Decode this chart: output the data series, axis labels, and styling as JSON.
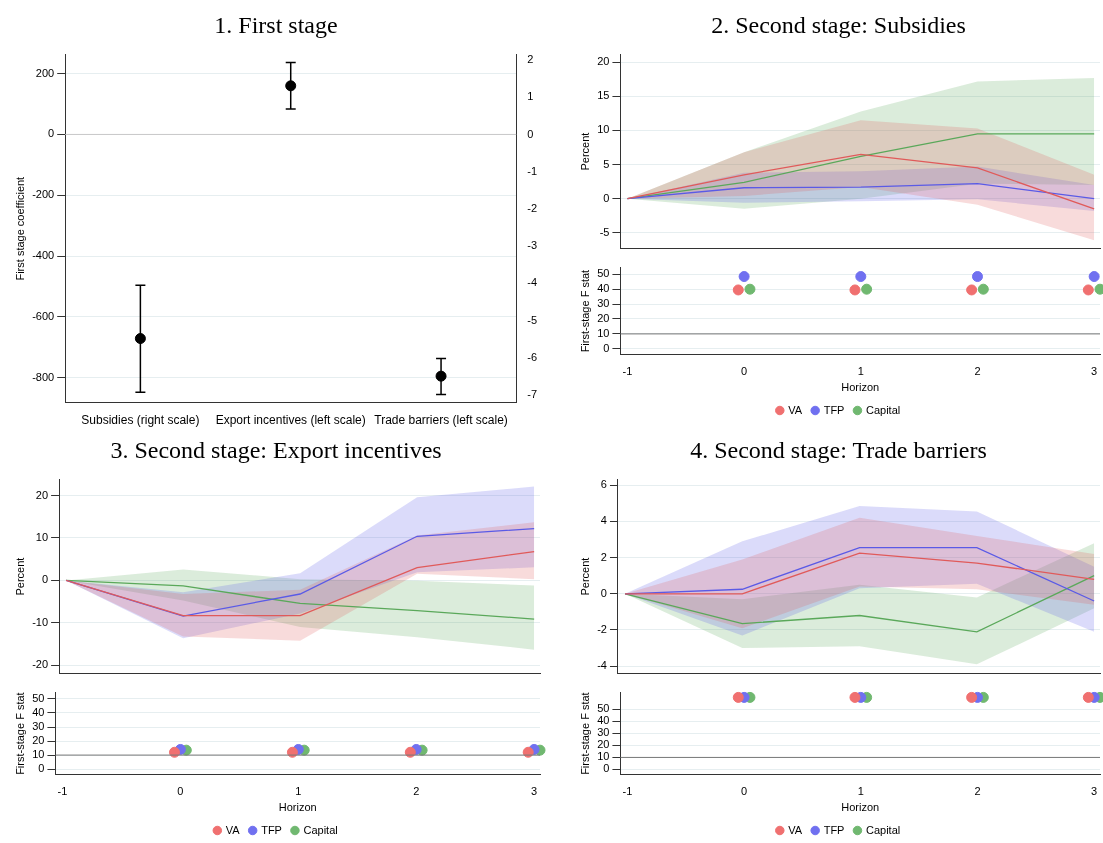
{
  "chart_data": [
    {
      "type": "scatter",
      "title": "1. First stage",
      "ylabel": "First stage coefficient",
      "categories": [
        "Subsidies (right scale)",
        "Export incentives (left scale)",
        "Trade barriers (left scale)"
      ],
      "ylim": [
        -882,
        262
      ],
      "yticks": [
        -800,
        -600,
        -400,
        -200,
        0,
        200
      ],
      "y2lim": [
        -7.2,
        2.14
      ],
      "y2ticks": [
        -7,
        -6,
        -5,
        -4,
        -3,
        -2,
        -1,
        0,
        1,
        2
      ],
      "grid": "y",
      "marker": "circle",
      "ref_lines": [
        {
          "axis": "y",
          "value": 0,
          "color": "#c8c8c8"
        }
      ],
      "series": [
        {
          "color": "#000000",
          "values": [
            null,
            160,
            -795
          ],
          "errors": [
            null,
            [
              84,
              237
            ],
            [
              -855,
              -737
            ]
          ]
        },
        {
          "color": "#000000",
          "axis": "y2",
          "values": [
            -5.48,
            null,
            null
          ],
          "errors": [
            [
              -6.92,
              -4.05
            ],
            null,
            null
          ]
        }
      ]
    },
    {
      "type": "line",
      "title": "2. Second stage: Subsidies",
      "ylabel": "Percent",
      "x": [
        -1,
        0,
        1,
        2,
        3
      ],
      "xlim": [
        -1.06,
        3.05
      ],
      "ylim": [
        -7.3,
        21.1
      ],
      "yticks": [
        -5,
        0,
        5,
        10,
        15,
        20
      ],
      "grid": "y",
      "tick_labels": "y",
      "series": [
        {
          "color": "#e05a5a",
          "values": [
            0,
            3.5,
            6.5,
            4.5,
            -1.5
          ],
          "lower": [
            0,
            0.4,
            1.7,
            -0.9,
            -6.1
          ],
          "upper": [
            0,
            6.8,
            11.5,
            10.3,
            3.5
          ]
        },
        {
          "color": "#5a5ae6",
          "values": [
            0,
            1.6,
            1.7,
            2.2,
            0
          ],
          "lower": [
            0,
            -0.6,
            -0.4,
            -0.1,
            -1.8
          ],
          "upper": [
            0,
            3.8,
            4,
            4.7,
            2
          ]
        },
        {
          "color": "#5aa85a",
          "values": [
            0,
            2.4,
            6.2,
            9.5,
            9.5
          ],
          "lower": [
            0,
            -1.5,
            0,
            2.2,
            2
          ],
          "upper": [
            0,
            6.8,
            12.8,
            17.2,
            17.7
          ]
        }
      ]
    },
    {
      "type": "scatter",
      "xlabel": "Horizon",
      "ylabel": "First-stage F stat",
      "xlim": [
        -1.06,
        3.05
      ],
      "xticks": [
        -1,
        0,
        1,
        2,
        3
      ],
      "ylim": [
        -3.9,
        54.5
      ],
      "yticks": [
        0,
        10,
        20,
        30,
        40,
        50
      ],
      "grid": "y",
      "marker": "circle",
      "legend": "bottom",
      "ref_lines": [
        {
          "axis": "y",
          "value": 10,
          "color": "#777777"
        }
      ],
      "series": [
        {
          "name": "VA",
          "color": "#f07070",
          "x": [
            -0.05,
            0.95,
            1.95,
            2.95
          ],
          "values": [
            39.5,
            39.5,
            39.5,
            39.5
          ]
        },
        {
          "name": "TFP",
          "color": "#7070f0",
          "x": [
            0,
            1,
            2,
            3
          ],
          "values": [
            48.5,
            48.5,
            48.5,
            48.5
          ]
        },
        {
          "name": "Capital",
          "color": "#70b870",
          "x": [
            0.05,
            1.05,
            2.05,
            3.05
          ],
          "values": [
            40,
            40,
            40,
            40
          ]
        }
      ]
    },
    {
      "type": "line",
      "title": "3. Second stage: Export incentives",
      "ylabel": "Percent",
      "x": [
        -1,
        0,
        1,
        2,
        3
      ],
      "xlim": [
        -1.06,
        3.05
      ],
      "ylim": [
        -21.9,
        23.7
      ],
      "yticks": [
        -20,
        -10,
        0,
        10,
        20
      ],
      "grid": "y",
      "tick_labels": "y",
      "series": [
        {
          "color": "#e05a5a",
          "values": [
            0,
            -8.3,
            -8.3,
            3,
            6.8
          ],
          "lower": [
            0,
            -13.2,
            -14.2,
            1.6,
            0.3
          ],
          "upper": [
            0,
            -3.2,
            -2.2,
            10.6,
            13.7
          ]
        },
        {
          "color": "#5a5ae6",
          "values": [
            0,
            -8.4,
            -3.2,
            10.4,
            12.2
          ],
          "lower": [
            0,
            -13.6,
            -7.8,
            1.9,
            3.1
          ],
          "upper": [
            0,
            -2.8,
            1.7,
            19.6,
            22.1
          ]
        },
        {
          "color": "#5aa85a",
          "values": [
            0,
            -1.3,
            -5.4,
            -7.1,
            -9.1
          ],
          "lower": [
            0,
            -4.7,
            -11,
            -13.4,
            -16.3
          ],
          "upper": [
            0,
            2.6,
            0.3,
            -0.1,
            -1.2
          ]
        }
      ]
    },
    {
      "type": "scatter",
      "xlabel": "Horizon",
      "ylabel": "First-stage F stat",
      "xlim": [
        -1.06,
        3.05
      ],
      "xticks": [
        -1,
        0,
        1,
        2,
        3
      ],
      "ylim": [
        -3.9,
        54.5
      ],
      "yticks": [
        0,
        10,
        20,
        30,
        40,
        50
      ],
      "grid": "y",
      "marker": "circle",
      "legend": "bottom",
      "ref_lines": [
        {
          "axis": "y",
          "value": 10,
          "color": "#777777"
        }
      ],
      "series": [
        {
          "name": "VA",
          "color": "#f07070",
          "x": [
            -0.05,
            0.95,
            1.95,
            2.95
          ],
          "values": [
            12,
            12,
            12,
            12
          ]
        },
        {
          "name": "TFP",
          "color": "#7070f0",
          "x": [
            0,
            1,
            2,
            3
          ],
          "values": [
            14,
            14,
            14,
            14
          ]
        },
        {
          "name": "Capital",
          "color": "#70b870",
          "x": [
            0.05,
            1.05,
            2.05,
            3.05
          ],
          "values": [
            13.5,
            13.5,
            13.5,
            13.5
          ]
        }
      ]
    },
    {
      "type": "line",
      "title": "4. Second stage: Trade barriers",
      "ylabel": "Percent",
      "x": [
        -1,
        0,
        1,
        2,
        3
      ],
      "xlim": [
        -1.06,
        3.05
      ],
      "ylim": [
        -4.4,
        6.3
      ],
      "yticks": [
        -4,
        -2,
        0,
        2,
        4,
        6
      ],
      "grid": "y",
      "tick_labels": "y",
      "series": [
        {
          "color": "#e05a5a",
          "values": [
            0,
            0,
            2.25,
            1.7,
            0.8
          ],
          "lower": [
            0,
            -1.9,
            0.4,
            0.25,
            -0.6
          ],
          "upper": [
            0,
            1.9,
            4.2,
            3.2,
            2.2
          ]
        },
        {
          "color": "#5a5ae6",
          "values": [
            0,
            0.25,
            2.55,
            2.55,
            -0.4
          ],
          "lower": [
            0,
            -2.3,
            0.3,
            0.55,
            -2.1
          ],
          "upper": [
            0,
            2.9,
            4.85,
            4.55,
            1.5
          ]
        },
        {
          "color": "#5aa85a",
          "values": [
            0,
            -1.65,
            -1.2,
            -2.1,
            1
          ],
          "lower": [
            0,
            -3,
            -2.9,
            -3.9,
            -0.8
          ],
          "upper": [
            0,
            -0.3,
            0.5,
            -0.2,
            2.8
          ]
        }
      ]
    },
    {
      "type": "scatter",
      "xlabel": "Horizon",
      "ylabel": "First-stage F stat",
      "xlim": [
        -1.06,
        3.05
      ],
      "xticks": [
        -1,
        0,
        1,
        2,
        3
      ],
      "ylim": [
        -4.3,
        64
      ],
      "yticks": [
        0,
        10,
        20,
        30,
        40,
        50
      ],
      "grid": "y",
      "marker": "circle",
      "legend": "bottom",
      "ref_lines": [
        {
          "axis": "y",
          "value": 10,
          "color": "#777777"
        }
      ],
      "series": [
        {
          "name": "VA",
          "color": "#f07070",
          "x": [
            -0.05,
            0.95,
            1.95,
            2.95
          ],
          "values": [
            60,
            60,
            60,
            60
          ]
        },
        {
          "name": "TFP",
          "color": "#7070f0",
          "x": [
            0,
            1,
            2,
            3
          ],
          "values": [
            60,
            60,
            60,
            60
          ]
        },
        {
          "name": "Capital",
          "color": "#70b870",
          "x": [
            0.05,
            1.05,
            2.05,
            3.05
          ],
          "values": [
            60,
            60,
            60,
            60
          ]
        }
      ]
    }
  ]
}
